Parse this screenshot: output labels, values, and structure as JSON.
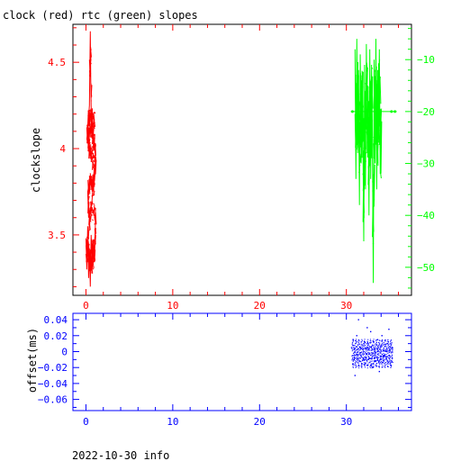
{
  "title": "clock (red) rtc (green) slopes",
  "footer": "2022-10-30 info",
  "colors": {
    "clock": "#ff0000",
    "rtc": "#00ff00",
    "offset": "#0000ff",
    "frame": "#000000"
  },
  "chart_data": [
    {
      "type": "line",
      "title": "clock (red) rtc (green) slopes",
      "xlabel": "",
      "ylabel": "clockslope",
      "xlim": [
        -1.5,
        37.5
      ],
      "xticks": [
        0,
        10,
        20,
        30
      ],
      "ylim_left": [
        3.15,
        4.72
      ],
      "yticks_left": [
        3.5,
        4,
        4.5
      ],
      "ylim_right": [
        -55.4,
        -3.2
      ],
      "yticks_right": [
        -50,
        -40,
        -30,
        -20,
        -10
      ],
      "series": [
        {
          "name": "clock (red)",
          "axis": "left",
          "x": [
            0.0,
            0.1,
            0.2,
            0.3,
            0.4,
            0.5,
            0.6,
            0.7,
            0.8,
            0.9,
            1.0,
            1.1,
            0.9,
            0.7,
            0.5,
            0.3,
            0.2,
            0.4,
            0.6,
            0.8,
            1.0,
            0.9,
            0.7,
            0.5,
            0.3,
            0.2,
            0.4,
            0.6,
            0.8,
            1.0,
            0.8,
            0.5,
            0.3,
            0.1,
            0.2,
            0.4,
            0.5,
            0.55,
            0.6,
            0.7,
            0.8,
            1.0,
            1.1,
            0.9,
            0.7,
            0.5,
            0.3,
            0.1,
            0.3,
            0.5,
            0.7,
            0.9
          ],
          "y": [
            3.48,
            3.3,
            3.55,
            3.25,
            3.42,
            3.2,
            3.5,
            3.35,
            3.45,
            3.4,
            3.38,
            3.6,
            3.62,
            3.65,
            3.62,
            3.6,
            3.75,
            3.8,
            3.82,
            3.78,
            3.82,
            3.9,
            3.95,
            3.98,
            4.0,
            4.05,
            4.1,
            4.12,
            4.08,
            4.15,
            4.18,
            4.2,
            4.15,
            4.05,
            4.1,
            4.25,
            4.68,
            4.4,
            4.25,
            4.1,
            4.05,
            4.02,
            3.95,
            3.85,
            3.7,
            3.65,
            3.5,
            3.45,
            3.4,
            3.35,
            3.3,
            3.4
          ]
        },
        {
          "name": "rtc (green)",
          "axis": "right",
          "x": [
            31.0,
            31.1,
            31.2,
            31.3,
            31.4,
            31.5,
            31.6,
            31.7,
            31.8,
            31.9,
            32.0,
            32.1,
            32.2,
            32.3,
            32.4,
            32.5,
            32.6,
            32.7,
            32.8,
            32.9,
            33.0,
            33.1,
            33.2,
            33.3,
            33.4,
            33.5,
            33.6,
            33.7,
            33.8,
            33.9,
            34.0
          ],
          "y": [
            -8,
            -33,
            -6,
            -28,
            -12,
            -38,
            -9,
            -30,
            -14,
            -24,
            -45,
            -11,
            -35,
            -7,
            -28,
            -16,
            -40,
            -8,
            -33,
            -11,
            -25,
            -53,
            -10,
            -30,
            -6,
            -35,
            -12,
            -26,
            -8,
            -32,
            -20
          ]
        }
      ]
    },
    {
      "type": "scatter",
      "xlabel": "",
      "ylabel": "offset(ms)",
      "xlim": [
        -1.5,
        37.5
      ],
      "xticks": [
        0,
        10,
        20,
        30
      ],
      "ylim": [
        -0.074,
        0.048
      ],
      "yticks": [
        -0.06,
        -0.04,
        -0.02,
        0,
        0.02,
        0.04
      ],
      "ytick_labels": [
        "−0.06",
        "−0.04",
        "−0.02",
        "0",
        "0.02",
        "0.04"
      ],
      "series": [
        {
          "name": "offset",
          "x": [
            30.6,
            30.9,
            31.2,
            31.4,
            31.7,
            32.0,
            32.2,
            32.5,
            32.8,
            33.0,
            33.3,
            33.6,
            33.9,
            34.1,
            34.4,
            34.7,
            35.0,
            35.3,
            31.0,
            32.4,
            33.8,
            34.9,
            30.8,
            32.9
          ],
          "y": [
            0.005,
            -0.01,
            0.02,
            0.04,
            -0.005,
            0.01,
            -0.015,
            0.008,
            0.025,
            -0.02,
            0.0,
            0.015,
            -0.01,
            0.02,
            -0.005,
            0.01,
            -0.012,
            0.005,
            -0.03,
            0.03,
            -0.025,
            0.028,
            0.015,
            -0.018
          ]
        }
      ]
    }
  ]
}
